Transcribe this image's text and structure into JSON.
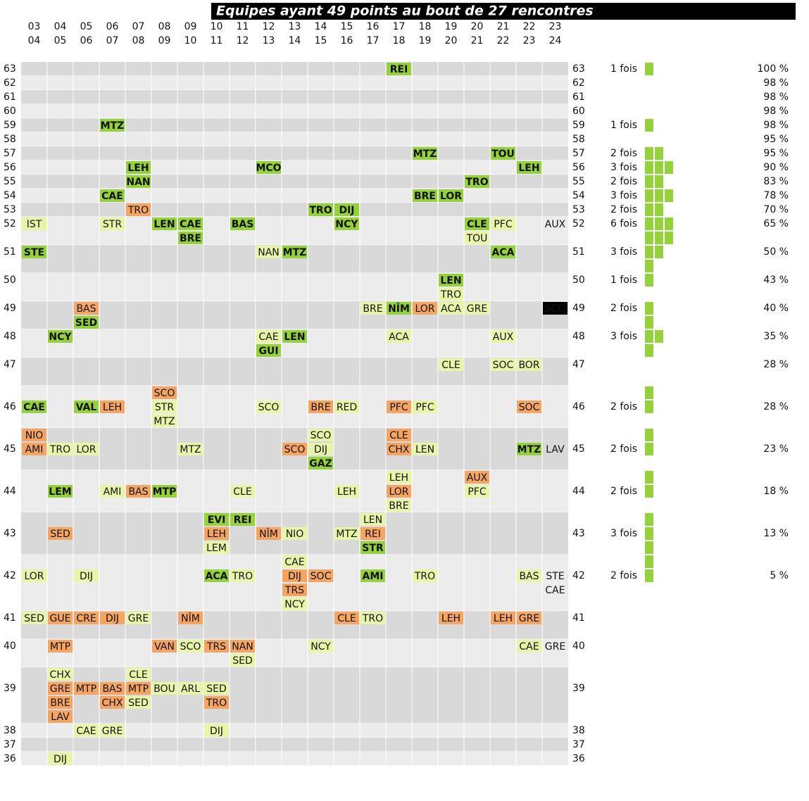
{
  "title": "Equipes ayant 49 points au bout de 27 rencontres",
  "seasons": [
    [
      "03",
      "04"
    ],
    [
      "04",
      "05"
    ],
    [
      "05",
      "06"
    ],
    [
      "06",
      "07"
    ],
    [
      "07",
      "08"
    ],
    [
      "08",
      "09"
    ],
    [
      "09",
      "10"
    ],
    [
      "10",
      "11"
    ],
    [
      "11",
      "12"
    ],
    [
      "12",
      "13"
    ],
    [
      "13",
      "14"
    ],
    [
      "14",
      "15"
    ],
    [
      "15",
      "16"
    ],
    [
      "16",
      "17"
    ],
    [
      "17",
      "18"
    ],
    [
      "18",
      "19"
    ],
    [
      "19",
      "20"
    ],
    [
      "20",
      "21"
    ],
    [
      "21",
      "22"
    ],
    [
      "22",
      "23"
    ],
    [
      "23",
      "24"
    ]
  ],
  "rows": [
    {
      "points": 63,
      "fois": {
        "value": 1,
        "label": "1 fois"
      },
      "percent": "100 %",
      "lines": [
        {
          "14": {
            "team": "REI",
            "style": "green"
          }
        }
      ]
    },
    {
      "points": 62,
      "percent": "98 %",
      "lines": [
        {}
      ]
    },
    {
      "points": 61,
      "percent": "98 %",
      "lines": [
        {}
      ]
    },
    {
      "points": 60,
      "percent": "98 %",
      "lines": [
        {}
      ]
    },
    {
      "points": 59,
      "fois": {
        "value": 1,
        "label": "1 fois"
      },
      "percent": "98 %",
      "lines": [
        {
          "3": {
            "team": "MTZ",
            "style": "green"
          }
        }
      ]
    },
    {
      "points": 58,
      "percent": "95 %",
      "lines": [
        {}
      ]
    },
    {
      "points": 57,
      "fois": {
        "value": 2,
        "label": "2 fois"
      },
      "percent": "95 %",
      "lines": [
        {
          "15": {
            "team": "MTZ",
            "style": "green"
          },
          "18": {
            "team": "TOU",
            "style": "green"
          }
        }
      ]
    },
    {
      "points": 56,
      "fois": {
        "value": 3,
        "label": "3 fois"
      },
      "percent": "90 %",
      "lines": [
        {
          "4": {
            "team": "LEH",
            "style": "green"
          },
          "9": {
            "team": "MCO",
            "style": "green"
          },
          "19": {
            "team": "LEH",
            "style": "green"
          }
        }
      ]
    },
    {
      "points": 55,
      "fois": {
        "value": 2,
        "label": "2 fois"
      },
      "percent": "83 %",
      "lines": [
        {
          "4": {
            "team": "NAN",
            "style": "green"
          },
          "17": {
            "team": "TRO",
            "style": "green"
          }
        }
      ]
    },
    {
      "points": 54,
      "fois": {
        "value": 3,
        "label": "3 fois"
      },
      "percent": "78 %",
      "lines": [
        {
          "3": {
            "team": "CAE",
            "style": "green"
          },
          "15": {
            "team": "BRE",
            "style": "green"
          },
          "16": {
            "team": "LOR",
            "style": "green"
          }
        }
      ]
    },
    {
      "points": 53,
      "fois": {
        "value": 2,
        "label": "2 fois"
      },
      "percent": "70 %",
      "lines": [
        {
          "4": {
            "team": "TRO",
            "style": "orange"
          },
          "11": {
            "team": "TRO",
            "style": "green"
          },
          "12": {
            "team": "DIJ",
            "style": "green"
          }
        }
      ]
    },
    {
      "points": 52,
      "fois": {
        "value": 6,
        "label": "6 fois"
      },
      "percent": "65 %",
      "lines": [
        {
          "0": {
            "team": "IST",
            "style": "yellow"
          },
          "3": {
            "team": "STR",
            "style": "yellow"
          },
          "5": {
            "team": "LEN",
            "style": "green"
          },
          "6": {
            "team": "CAE",
            "style": "green"
          },
          "8": {
            "team": "BAS",
            "style": "green"
          },
          "12": {
            "team": "NCY",
            "style": "green"
          },
          "17": {
            "team": "CLE",
            "style": "green"
          },
          "18": {
            "team": "PFC",
            "style": "yellow"
          },
          "20": {
            "team": "AUX",
            "style": "none"
          }
        },
        {
          "6": {
            "team": "BRE",
            "style": "green"
          },
          "17": {
            "team": "TOU",
            "style": "yellow"
          }
        }
      ]
    },
    {
      "points": 51,
      "fois": {
        "value": 3,
        "label": "3 fois"
      },
      "percent": "50 %",
      "lines": [
        {
          "0": {
            "team": "STE",
            "style": "green"
          },
          "9": {
            "team": "NAN",
            "style": "yellow"
          },
          "10": {
            "team": "MTZ",
            "style": "green"
          },
          "18": {
            "team": "ACA",
            "style": "green"
          }
        },
        {}
      ]
    },
    {
      "points": 50,
      "fois": {
        "value": 1,
        "label": "1 fois"
      },
      "percent": "43 %",
      "lines": [
        {
          "16": {
            "team": "LEN",
            "style": "green"
          }
        },
        {
          "16": {
            "team": "TRO",
            "style": "yellow"
          }
        }
      ]
    },
    {
      "points": 49,
      "fois": {
        "value": 2,
        "label": "2 fois"
      },
      "percent": "40 %",
      "lines": [
        {
          "2": {
            "team": "BAS",
            "style": "orange"
          },
          "13": {
            "team": "BRE",
            "style": "yellow"
          },
          "14": {
            "team": "NÎM",
            "style": "green"
          },
          "15": {
            "team": "LOR",
            "style": "orange"
          },
          "16": {
            "team": "ACA",
            "style": "yellow"
          },
          "17": {
            "team": "GRE",
            "style": "yellow"
          },
          "20": {
            "team": "SCO",
            "style": "black"
          }
        },
        {
          "2": {
            "team": "SED",
            "style": "green"
          }
        }
      ]
    },
    {
      "points": 48,
      "fois": {
        "value": 3,
        "label": "3 fois"
      },
      "percent": "35 %",
      "lines": [
        {
          "1": {
            "team": "NCY",
            "style": "green"
          },
          "9": {
            "team": "CAE",
            "style": "yellow"
          },
          "10": {
            "team": "LEN",
            "style": "green"
          },
          "14": {
            "team": "ACA",
            "style": "yellow"
          },
          "18": {
            "team": "AUX",
            "style": "yellow"
          }
        },
        {
          "9": {
            "team": "GUI",
            "style": "green"
          }
        }
      ]
    },
    {
      "points": 47,
      "percent": "28 %",
      "lines": [
        {
          "16": {
            "team": "CLE",
            "style": "yellow"
          },
          "18": {
            "team": "SOC",
            "style": "yellow"
          },
          "19": {
            "team": "BOR",
            "style": "yellow"
          }
        },
        {}
      ]
    },
    {
      "points": 46,
      "fois": {
        "value": 2,
        "label": "2 fois"
      },
      "percent": "28 %",
      "lines": [
        {
          "5": {
            "team": "SCO",
            "style": "orange"
          }
        },
        {
          "0": {
            "team": "CAE",
            "style": "green"
          },
          "2": {
            "team": "VAL",
            "style": "green"
          },
          "3": {
            "team": "LEH",
            "style": "orange"
          },
          "5": {
            "team": "STR",
            "style": "yellow"
          },
          "9": {
            "team": "SCO",
            "style": "yellow"
          },
          "11": {
            "team": "BRE",
            "style": "orange"
          },
          "12": {
            "team": "RED",
            "style": "yellow"
          },
          "14": {
            "team": "PFC",
            "style": "orange"
          },
          "15": {
            "team": "PFC",
            "style": "yellow"
          },
          "19": {
            "team": "SOC",
            "style": "orange"
          }
        },
        {
          "5": {
            "team": "MTZ",
            "style": "yellow"
          }
        }
      ]
    },
    {
      "points": 45,
      "fois": {
        "value": 2,
        "label": "2 fois"
      },
      "percent": "23 %",
      "lines": [
        {
          "0": {
            "team": "NIO",
            "style": "orange"
          },
          "11": {
            "team": "SCO",
            "style": "yellow"
          },
          "14": {
            "team": "CLE",
            "style": "orange"
          }
        },
        {
          "0": {
            "team": "AMI",
            "style": "orange"
          },
          "1": {
            "team": "TRO",
            "style": "yellow"
          },
          "2": {
            "team": "LOR",
            "style": "yellow"
          },
          "6": {
            "team": "MTZ",
            "style": "yellow"
          },
          "10": {
            "team": "SCO",
            "style": "orange"
          },
          "11": {
            "team": "DIJ",
            "style": "yellow"
          },
          "14": {
            "team": "CHX",
            "style": "orange"
          },
          "15": {
            "team": "LEN",
            "style": "yellow"
          },
          "19": {
            "team": "MTZ",
            "style": "green"
          },
          "20": {
            "team": "LAV",
            "style": "none"
          }
        },
        {
          "11": {
            "team": "GAZ",
            "style": "green"
          }
        }
      ]
    },
    {
      "points": 44,
      "fois": {
        "value": 2,
        "label": "2 fois"
      },
      "percent": "18 %",
      "lines": [
        {
          "14": {
            "team": "LEH",
            "style": "yellow"
          },
          "17": {
            "team": "AUX",
            "style": "orange"
          }
        },
        {
          "1": {
            "team": "LEM",
            "style": "green"
          },
          "3": {
            "team": "AMI",
            "style": "yellow"
          },
          "4": {
            "team": "BAS",
            "style": "orange"
          },
          "5": {
            "team": "MTP",
            "style": "green"
          },
          "8": {
            "team": "CLE",
            "style": "yellow"
          },
          "12": {
            "team": "LEH",
            "style": "yellow"
          },
          "14": {
            "team": "LOR",
            "style": "orange"
          },
          "17": {
            "team": "PFC",
            "style": "yellow"
          }
        },
        {
          "14": {
            "team": "BRE",
            "style": "yellow"
          }
        }
      ]
    },
    {
      "points": 43,
      "fois": {
        "value": 3,
        "label": "3 fois"
      },
      "percent": "13 %",
      "lines": [
        {
          "7": {
            "team": "EVI",
            "style": "green"
          },
          "8": {
            "team": "REI",
            "style": "green"
          },
          "13": {
            "team": "LEN",
            "style": "yellow"
          }
        },
        {
          "1": {
            "team": "SED",
            "style": "orange"
          },
          "7": {
            "team": "LEH",
            "style": "orange"
          },
          "9": {
            "team": "NÎM",
            "style": "orange"
          },
          "10": {
            "team": "NIO",
            "style": "yellow"
          },
          "12": {
            "team": "MTZ",
            "style": "yellow"
          },
          "13": {
            "team": "REI",
            "style": "orange"
          }
        },
        {
          "7": {
            "team": "LEM",
            "style": "yellow"
          },
          "13": {
            "team": "STR",
            "style": "green"
          }
        }
      ]
    },
    {
      "points": 42,
      "fois": {
        "value": 2,
        "label": "2 fois"
      },
      "percent": "5 %",
      "lines": [
        {
          "10": {
            "team": "CAE",
            "style": "yellow"
          }
        },
        {
          "0": {
            "team": "LOR",
            "style": "yellow"
          },
          "2": {
            "team": "DIJ",
            "style": "yellow"
          },
          "7": {
            "team": "ACA",
            "style": "green"
          },
          "8": {
            "team": "TRO",
            "style": "yellow"
          },
          "10": {
            "team": "DIJ",
            "style": "orange"
          },
          "11": {
            "team": "SOC",
            "style": "orange"
          },
          "13": {
            "team": "AMI",
            "style": "green"
          },
          "15": {
            "team": "TRO",
            "style": "yellow"
          },
          "19": {
            "team": "BAS",
            "style": "yellow"
          },
          "20": {
            "team": "STE",
            "style": "none"
          }
        },
        {
          "10": {
            "team": "TRS",
            "style": "orange"
          },
          "20": {
            "team": "CAE",
            "style": "none"
          }
        },
        {
          "10": {
            "team": "NCY",
            "style": "yellow"
          }
        }
      ]
    },
    {
      "points": 41,
      "lines": [
        {
          "0": {
            "team": "SED",
            "style": "yellow"
          },
          "1": {
            "team": "GUE",
            "style": "orange"
          },
          "2": {
            "team": "CRE",
            "style": "orange"
          },
          "3": {
            "team": "DIJ",
            "style": "orange"
          },
          "4": {
            "team": "GRE",
            "style": "yellow"
          },
          "6": {
            "team": "NÎM",
            "style": "orange"
          },
          "12": {
            "team": "CLE",
            "style": "orange"
          },
          "13": {
            "team": "TRO",
            "style": "yellow"
          },
          "16": {
            "team": "LEH",
            "style": "orange"
          },
          "18": {
            "team": "LEH",
            "style": "orange"
          },
          "19": {
            "team": "GRE",
            "style": "orange"
          }
        },
        {}
      ]
    },
    {
      "points": 40,
      "lines": [
        {
          "1": {
            "team": "MTP",
            "style": "orange"
          },
          "5": {
            "team": "VAN",
            "style": "orange"
          },
          "6": {
            "team": "SCO",
            "style": "yellow"
          },
          "7": {
            "team": "TRS",
            "style": "orange"
          },
          "8": {
            "team": "NAN",
            "style": "orange"
          },
          "11": {
            "team": "NCY",
            "style": "yellow"
          },
          "19": {
            "team": "CAE",
            "style": "yellow"
          },
          "20": {
            "team": "GRE",
            "style": "none"
          }
        },
        {
          "8": {
            "team": "SED",
            "style": "yellow"
          }
        }
      ]
    },
    {
      "points": 39,
      "lines": [
        {
          "1": {
            "team": "CHX",
            "style": "yellow"
          },
          "4": {
            "team": "CLE",
            "style": "yellow"
          }
        },
        {
          "1": {
            "team": "GRE",
            "style": "orange"
          },
          "2": {
            "team": "MTP",
            "style": "orange"
          },
          "3": {
            "team": "BAS",
            "style": "orange"
          },
          "4": {
            "team": "MTP",
            "style": "orange"
          },
          "5": {
            "team": "BOU",
            "style": "yellow"
          },
          "6": {
            "team": "ARL",
            "style": "yellow"
          },
          "7": {
            "team": "SED",
            "style": "yellow"
          }
        },
        {
          "1": {
            "team": "BRE",
            "style": "orange"
          },
          "3": {
            "team": "CHX",
            "style": "orange"
          },
          "4": {
            "team": "SED",
            "style": "yellow"
          },
          "7": {
            "team": "TRO",
            "style": "orange"
          }
        },
        {
          "1": {
            "team": "LAV",
            "style": "orange"
          }
        }
      ]
    },
    {
      "points": 38,
      "lines": [
        {
          "2": {
            "team": "CAE",
            "style": "yellow"
          },
          "3": {
            "team": "GRE",
            "style": "yellow"
          },
          "7": {
            "team": "DIJ",
            "style": "yellow"
          }
        }
      ]
    },
    {
      "points": 37,
      "lines": [
        {}
      ]
    },
    {
      "points": 36,
      "lines": [
        {
          "1": {
            "team": "DIJ",
            "style": "yellow"
          }
        }
      ]
    }
  ]
}
